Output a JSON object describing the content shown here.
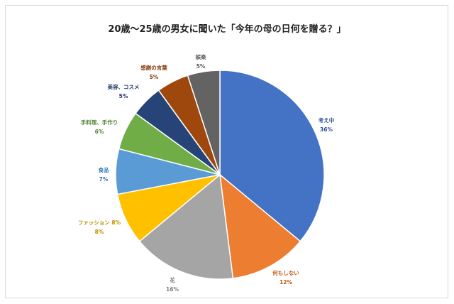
{
  "chart_data": {
    "type": "pie",
    "title": "20歳〜25歳の男女に聞いた「今年の母の日何を贈る？」",
    "slices": [
      {
        "name": "考え中",
        "label": "36%",
        "value": 36,
        "color": "#4472c4",
        "text_color": "#2f5597"
      },
      {
        "name": "何もしない",
        "label": "12%",
        "value": 12,
        "color": "#ed7d31",
        "text_color": "#c55a11"
      },
      {
        "name": "花",
        "label": "16%",
        "value": 16,
        "color": "#a5a5a5",
        "text_color": "#7f7f7f"
      },
      {
        "name": "ファッション 8%",
        "label": "8%",
        "value": 8,
        "color": "#ffc000",
        "text_color": "#bf9000"
      },
      {
        "name": "食品",
        "label": "7%",
        "value": 7,
        "color": "#5b9bd5",
        "text_color": "#2e75b6"
      },
      {
        "name": "手料理、手作り",
        "label": "6%",
        "value": 6,
        "color": "#70ad47",
        "text_color": "#548235"
      },
      {
        "name": "美容、コスメ",
        "label": "5%",
        "value": 5,
        "color": "#264478",
        "text_color": "#1f3864"
      },
      {
        "name": "感謝の言葉",
        "label": "5%",
        "value": 5,
        "color": "#9e480e",
        "text_color": "#843c0c"
      },
      {
        "name": "娯楽",
        "label": "5%",
        "value": 5,
        "color": "#636363",
        "text_color": "#595959"
      }
    ]
  }
}
